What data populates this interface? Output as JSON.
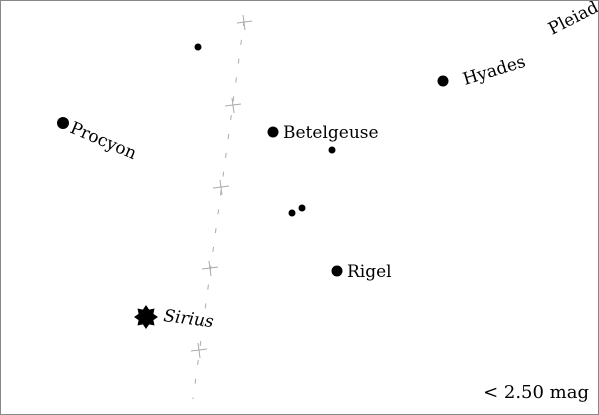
{
  "star_labels": {
    "pleiades": "Pleiad",
    "hyades": "Hyades",
    "procyon": "Procyon",
    "betelgeuse": "Betelgeuse",
    "rigel": "Rigel",
    "sirius": "Sirius"
  },
  "magnitude_limit": "< 2.50 mag",
  "colors": {
    "stars": "#000000",
    "equator_line": "#aaaaaa",
    "border": "#888888",
    "background": "#ffffff"
  },
  "icons": {
    "bright_star": "filled-circle",
    "brightest_star": "eight-point-star",
    "equator_tick": "plus-cross"
  }
}
